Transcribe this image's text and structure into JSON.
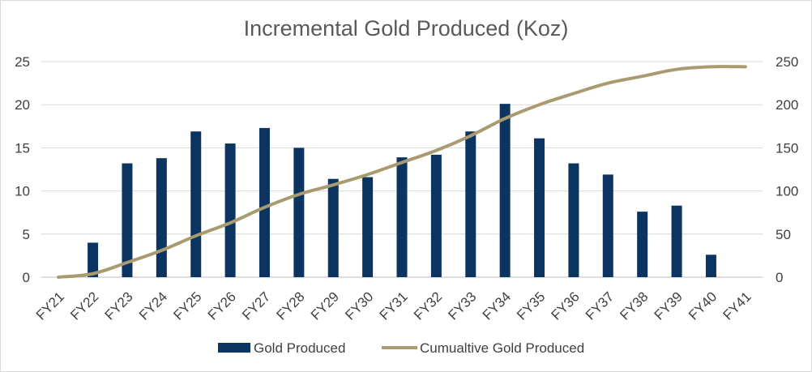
{
  "chart_data": {
    "type": "bar",
    "title": "Incremental Gold Produced (Koz)",
    "categories": [
      "FY21",
      "FY22",
      "FY23",
      "FY24",
      "FY25",
      "FY26",
      "FY27",
      "FY28",
      "FY29",
      "FY30",
      "FY31",
      "FY32",
      "FY33",
      "FY34",
      "FY35",
      "FY36",
      "FY37",
      "FY38",
      "FY39",
      "FY40",
      "FY41"
    ],
    "series": [
      {
        "name": "Gold Produced",
        "type": "bar",
        "axis": "left",
        "color": "#0b3560",
        "values": [
          0,
          4.0,
          13.2,
          13.8,
          16.9,
          15.5,
          17.3,
          15.0,
          11.4,
          11.6,
          13.9,
          14.2,
          16.9,
          20.1,
          16.1,
          13.2,
          11.9,
          7.6,
          8.3,
          2.6,
          0
        ]
      },
      {
        "name": "Cumualtive Gold Produced",
        "type": "line",
        "axis": "right",
        "color": "#a99a70",
        "values": [
          0,
          4,
          17,
          31,
          48,
          63,
          81,
          96,
          107,
          119,
          133,
          147,
          164,
          184,
          200,
          213,
          225,
          233,
          241,
          244,
          244
        ]
      }
    ],
    "ylim_left": [
      0,
      25
    ],
    "yticks_left": [
      "0",
      "5",
      "10",
      "15",
      "20",
      "25"
    ],
    "ylim_right": [
      0,
      250
    ],
    "yticks_right": [
      "0",
      "50",
      "100",
      "150",
      "200",
      "250"
    ],
    "grid": true,
    "legend": "bottom"
  }
}
